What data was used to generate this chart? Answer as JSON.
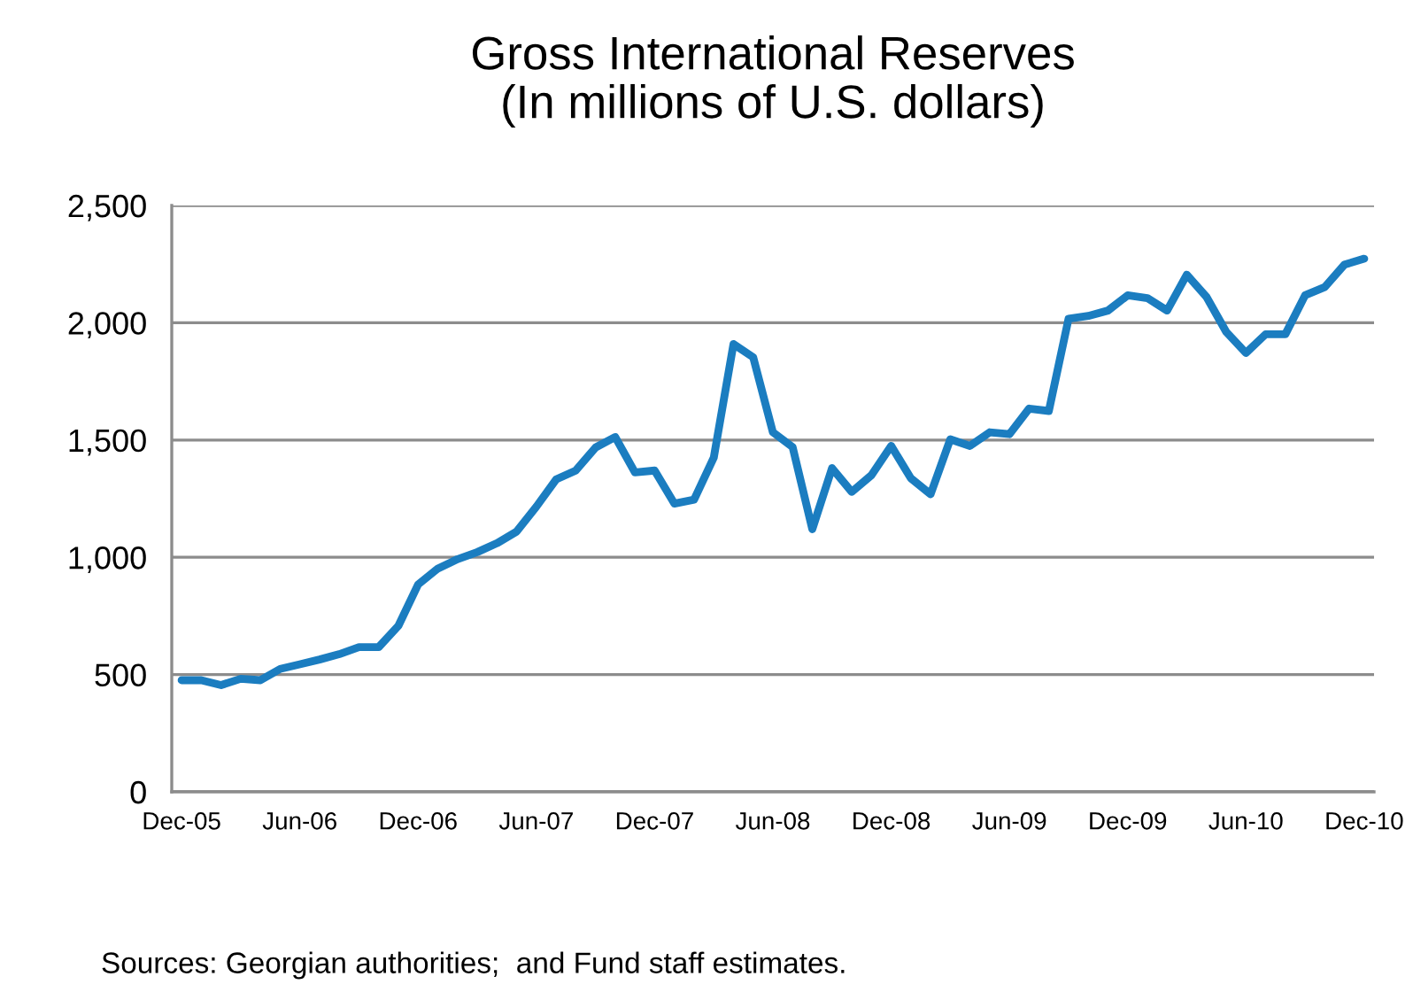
{
  "chart_data": {
    "type": "line",
    "title": "Gross International Reserves\n(In millions of U.S. dollars)",
    "categories": [
      "Dec-05",
      null,
      null,
      null,
      null,
      null,
      "Jun-06",
      null,
      null,
      null,
      null,
      null,
      "Dec-06",
      null,
      null,
      null,
      null,
      null,
      "Jun-07",
      null,
      null,
      null,
      null,
      null,
      "Dec-07",
      null,
      null,
      null,
      null,
      null,
      "Jun-08",
      null,
      null,
      null,
      null,
      null,
      "Dec-08",
      null,
      null,
      null,
      null,
      null,
      "Jun-09",
      null,
      null,
      null,
      null,
      null,
      "Dec-09",
      null,
      null,
      null,
      null,
      null,
      "Jun-10",
      null,
      null,
      null,
      null,
      null,
      "Dec-10"
    ],
    "series": [
      {
        "color": "#1b7dc0",
        "values": [
          476,
          476,
          455,
          482,
          476,
          524,
          544,
          564,
          587,
          617,
          617,
          708,
          884,
          952,
          992,
          1022,
          1060,
          1110,
          1216,
          1332,
          1370,
          1468,
          1513,
          1362,
          1370,
          1229,
          1246,
          1425,
          1909,
          1853,
          1533,
          1470,
          1120,
          1380,
          1279,
          1350,
          1475,
          1337,
          1269,
          1503,
          1475,
          1533,
          1525,
          1634,
          1624,
          2017,
          2029,
          2052,
          2117,
          2105,
          2052,
          2205,
          2110,
          1961,
          1871,
          1951,
          1951,
          2117,
          2152,
          2248,
          2273
        ]
      }
    ],
    "ylim": [
      0,
      2500
    ],
    "yticks": [
      {
        "value": 0,
        "label": "0"
      },
      {
        "value": 500,
        "label": "500"
      },
      {
        "value": 1000,
        "label": "1,000"
      },
      {
        "value": 1500,
        "label": "1,500"
      },
      {
        "value": 2000,
        "label": "2,000"
      },
      {
        "value": 2500,
        "label": "2,500"
      }
    ],
    "grid": "y",
    "legend": false,
    "marker": "none",
    "line_style": "solid",
    "annotations": [
      "Sources: Georgian authorities;  and Fund staff estimates."
    ]
  }
}
